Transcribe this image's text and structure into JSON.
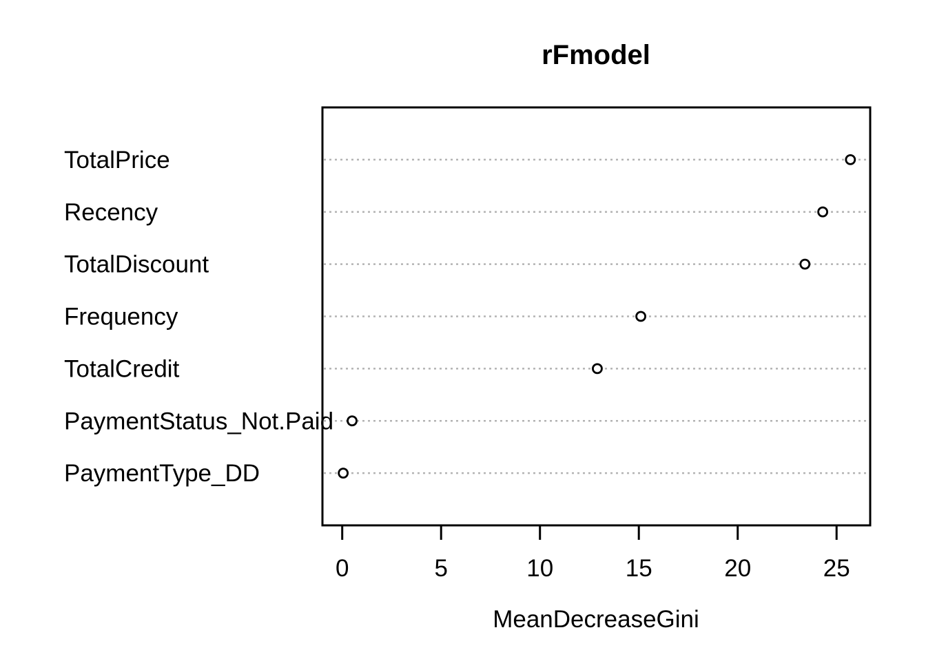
{
  "chart_data": {
    "type": "scatter",
    "subtype": "dotchart-variable-importance",
    "title": "rFmodel",
    "xlabel": "MeanDecreaseGini",
    "ylabel": "",
    "categories": [
      "TotalPrice",
      "Recency",
      "TotalDiscount",
      "Frequency",
      "TotalCredit",
      "PaymentStatus_Not.Paid",
      "PaymentType_DD"
    ],
    "values": [
      25.7,
      24.3,
      23.4,
      15.1,
      12.9,
      0.5,
      0.05
    ],
    "x_ticks": [
      0,
      5,
      10,
      15,
      20,
      25
    ],
    "xlim": [
      -1,
      26.7
    ],
    "grid": "horizontal-dotted",
    "legend": "none",
    "point_style": "open-circle",
    "colors": {
      "background": "#ffffff",
      "foreground": "#000000",
      "gridline": "#b3b3b3",
      "point_fill": "#ffffff",
      "point_stroke": "#000000"
    }
  }
}
